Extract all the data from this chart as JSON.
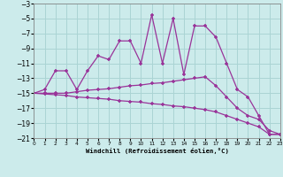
{
  "xlabel": "Windchill (Refroidissement éolien,°C)",
  "x": [
    0,
    1,
    2,
    3,
    4,
    5,
    6,
    7,
    8,
    9,
    10,
    11,
    12,
    13,
    14,
    15,
    16,
    17,
    18,
    19,
    20,
    21,
    22,
    23
  ],
  "line1_y": [
    -15.0,
    -14.5,
    -12.0,
    -12.0,
    -14.5,
    -12.0,
    -10.0,
    -10.5,
    -8.0,
    -8.0,
    -11.0,
    -4.5,
    -11.0,
    -5.0,
    -12.5,
    -6.0,
    -6.0,
    -7.5,
    -11.0,
    -14.5,
    -15.5,
    -18.0,
    -20.5,
    -20.5
  ],
  "line2_y": [
    -15.0,
    -15.0,
    -15.0,
    -15.0,
    -14.8,
    -14.6,
    -14.5,
    -14.4,
    -14.2,
    -14.0,
    -13.9,
    -13.7,
    -13.6,
    -13.4,
    -13.2,
    -13.0,
    -12.8,
    -14.0,
    -15.5,
    -17.0,
    -18.0,
    -18.5,
    -20.0,
    -20.5
  ],
  "line3_y": [
    -15.0,
    -15.1,
    -15.2,
    -15.3,
    -15.5,
    -15.6,
    -15.7,
    -15.8,
    -16.0,
    -16.1,
    -16.2,
    -16.4,
    -16.5,
    -16.7,
    -16.8,
    -17.0,
    -17.2,
    -17.5,
    -18.0,
    -18.5,
    -19.0,
    -19.5,
    -20.5,
    -20.5
  ],
  "bg_color": "#ccebeb",
  "grid_color": "#aad4d4",
  "line_color": "#993399",
  "ylim": [
    -21,
    -3
  ],
  "xlim": [
    0,
    23
  ],
  "yticks": [
    -3,
    -5,
    -7,
    -9,
    -11,
    -13,
    -15,
    -17,
    -19,
    -21
  ],
  "xticks": [
    0,
    1,
    2,
    3,
    4,
    5,
    6,
    7,
    8,
    9,
    10,
    11,
    12,
    13,
    14,
    15,
    16,
    17,
    18,
    19,
    20,
    21,
    22,
    23
  ]
}
